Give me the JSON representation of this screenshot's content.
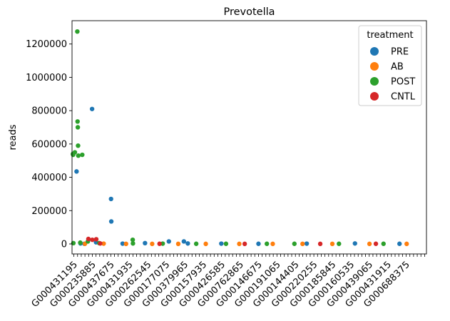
{
  "chart_data": {
    "type": "scatter",
    "title": "Prevotella",
    "xlabel": "",
    "ylabel": "reads",
    "ylim": [
      -60000,
      1340000
    ],
    "yticks": [
      0,
      200000,
      400000,
      600000,
      800000,
      1000000,
      1200000
    ],
    "ytick_labels": [
      "0",
      "200000",
      "400000",
      "600000",
      "800000",
      "1000000",
      "1200000"
    ],
    "n_categories": 96,
    "xtick_labels": [
      {
        "index": 0,
        "label": "G000431195"
      },
      {
        "index": 5,
        "label": "G000235885"
      },
      {
        "index": 10,
        "label": "G000437675"
      },
      {
        "index": 15,
        "label": "G000431935"
      },
      {
        "index": 20,
        "label": "G000262545"
      },
      {
        "index": 25,
        "label": "G000177075"
      },
      {
        "index": 30,
        "label": "G000379965"
      },
      {
        "index": 35,
        "label": "G000157935"
      },
      {
        "index": 40,
        "label": "G000426585"
      },
      {
        "index": 45,
        "label": "G000762865"
      },
      {
        "index": 50,
        "label": "G000146675"
      },
      {
        "index": 55,
        "label": "G000191065"
      },
      {
        "index": 60,
        "label": "G000144405"
      },
      {
        "index": 65,
        "label": "G000220255"
      },
      {
        "index": 70,
        "label": "G000185845"
      },
      {
        "index": 75,
        "label": "G000160535"
      },
      {
        "index": 80,
        "label": "G000439065"
      },
      {
        "index": 85,
        "label": "G000431915"
      },
      {
        "index": 90,
        "label": "G000688375"
      }
    ],
    "legend": {
      "title": "treatment",
      "placement": "top-right",
      "entries": [
        {
          "name": "PRE",
          "color": "#1f77b4"
        },
        {
          "name": "AB",
          "color": "#ff7f0e"
        },
        {
          "name": "POST",
          "color": "#2ca02c"
        },
        {
          "name": "CNTL",
          "color": "#d62728"
        }
      ]
    },
    "grid": false,
    "series": [
      {
        "name": "PRE",
        "color": "#1f77b4",
        "points": [
          {
            "x": 1,
            "y": 435000
          },
          {
            "x": 2,
            "y": 3000
          },
          {
            "x": 3,
            "y": 1000
          },
          {
            "x": 5,
            "y": 810000
          },
          {
            "x": 6,
            "y": 10000
          },
          {
            "x": 10,
            "y": 270000
          },
          {
            "x": 10,
            "y": 135000
          },
          {
            "x": 13,
            "y": 2000
          },
          {
            "x": 19,
            "y": 5000
          },
          {
            "x": 26,
            "y": 15000
          },
          {
            "x": 30,
            "y": 15000
          },
          {
            "x": 31,
            "y": 3000
          },
          {
            "x": 40,
            "y": 2000
          },
          {
            "x": 50,
            "y": 1000
          },
          {
            "x": 63,
            "y": 2000
          },
          {
            "x": 76,
            "y": 3000
          },
          {
            "x": 88,
            "y": 1000
          }
        ]
      },
      {
        "name": "AB",
        "color": "#ff7f0e",
        "points": [
          {
            "x": 3,
            "y": 1000
          },
          {
            "x": 8,
            "y": 2000
          },
          {
            "x": 14,
            "y": 500
          },
          {
            "x": 21,
            "y": 500
          },
          {
            "x": 28,
            "y": 500
          },
          {
            "x": 36,
            "y": 500
          },
          {
            "x": 45,
            "y": 500
          },
          {
            "x": 54,
            "y": 500
          },
          {
            "x": 62,
            "y": 500
          },
          {
            "x": 70,
            "y": 500
          },
          {
            "x": 80,
            "y": 500
          },
          {
            "x": 90,
            "y": 500
          }
        ]
      },
      {
        "name": "POST",
        "color": "#2ca02c",
        "points": [
          {
            "x": 0,
            "y": 550000
          },
          {
            "x": 0,
            "y": 540000
          },
          {
            "x": 0,
            "y": 535000
          },
          {
            "x": 0,
            "y": 5000
          },
          {
            "x": 1,
            "y": 1275000
          },
          {
            "x": 1,
            "y": 735000
          },
          {
            "x": 1,
            "y": 700000
          },
          {
            "x": 1,
            "y": 590000
          },
          {
            "x": 1,
            "y": 530000
          },
          {
            "x": 2,
            "y": 535000
          },
          {
            "x": 2,
            "y": 8000
          },
          {
            "x": 4,
            "y": 15000
          },
          {
            "x": 7,
            "y": 5000
          },
          {
            "x": 16,
            "y": 25000
          },
          {
            "x": 16,
            "y": 3000
          },
          {
            "x": 24,
            "y": 2000
          },
          {
            "x": 33,
            "y": 1000
          },
          {
            "x": 41,
            "y": 1000
          },
          {
            "x": 52,
            "y": 1000
          },
          {
            "x": 60,
            "y": 1000
          },
          {
            "x": 72,
            "y": 1000
          },
          {
            "x": 84,
            "y": 1000
          }
        ]
      },
      {
        "name": "CNTL",
        "color": "#d62728",
        "points": [
          {
            "x": 4,
            "y": 30000
          },
          {
            "x": 5,
            "y": 25000
          },
          {
            "x": 6,
            "y": 28000
          },
          {
            "x": 7,
            "y": 3000
          },
          {
            "x": 23,
            "y": 1000
          },
          {
            "x": 46,
            "y": 500
          },
          {
            "x": 67,
            "y": 500
          },
          {
            "x": 82,
            "y": 1000
          }
        ]
      }
    ]
  }
}
